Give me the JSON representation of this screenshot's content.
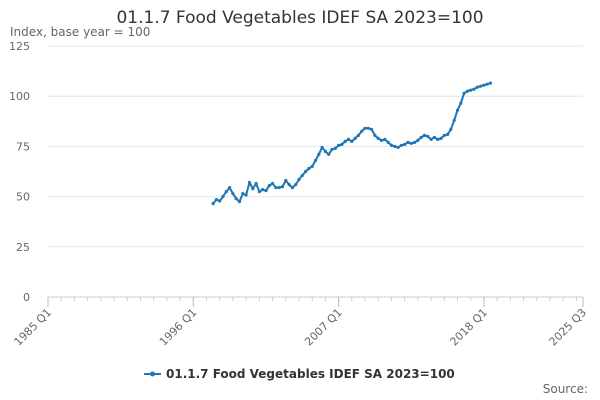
{
  "chart_data": {
    "type": "line",
    "title": "01.1.7 Food Vegetables IDEF SA 2023=100",
    "subtitle": "Index, base year = 100",
    "source_label": "Source:",
    "xlabel": "",
    "ylabel": "",
    "x_ticks": [
      "1985 Q1",
      "1996 Q1",
      "2007 Q1",
      "2018 Q1",
      "2025 Q3"
    ],
    "xlim": [
      "1985 Q1",
      "2025 Q3"
    ],
    "y_ticks": [
      0,
      25,
      50,
      75,
      100,
      125
    ],
    "ylim": [
      0,
      125
    ],
    "grid": "horizontal",
    "legend_position": "bottom-center",
    "series": [
      {
        "name": "01.1.7 Food Vegetables IDEF SA 2023=100",
        "color": "#1f77b4",
        "points": [
          [
            "1997 Q3",
            46.5
          ],
          [
            "1997 Q4",
            48.5
          ],
          [
            "1998 Q1",
            47.8
          ],
          [
            "1998 Q2",
            50.0
          ],
          [
            "1998 Q3",
            52.5
          ],
          [
            "1998 Q4",
            54.5
          ],
          [
            "1999 Q1",
            51.5
          ],
          [
            "1999 Q2",
            49.0
          ],
          [
            "1999 Q3",
            47.5
          ],
          [
            "1999 Q4",
            51.5
          ],
          [
            "2000 Q1",
            50.8
          ],
          [
            "2000 Q2",
            57.0
          ],
          [
            "2000 Q3",
            54.0
          ],
          [
            "2000 Q4",
            56.5
          ],
          [
            "2001 Q1",
            52.5
          ],
          [
            "2001 Q2",
            53.5
          ],
          [
            "2001 Q3",
            53.0
          ],
          [
            "2001 Q4",
            55.5
          ],
          [
            "2002 Q1",
            56.5
          ],
          [
            "2002 Q2",
            54.5
          ],
          [
            "2002 Q3",
            54.5
          ],
          [
            "2002 Q4",
            55.0
          ],
          [
            "2003 Q1",
            58.0
          ],
          [
            "2003 Q2",
            56.0
          ],
          [
            "2003 Q3",
            54.5
          ],
          [
            "2003 Q4",
            56.0
          ],
          [
            "2004 Q1",
            58.5
          ],
          [
            "2004 Q2",
            60.5
          ],
          [
            "2004 Q3",
            62.5
          ],
          [
            "2004 Q4",
            64.0
          ],
          [
            "2005 Q1",
            65.0
          ],
          [
            "2005 Q2",
            68.0
          ],
          [
            "2005 Q3",
            71.0
          ],
          [
            "2005 Q4",
            74.5
          ],
          [
            "2006 Q1",
            72.5
          ],
          [
            "2006 Q2",
            71.0
          ],
          [
            "2006 Q3",
            73.5
          ],
          [
            "2006 Q4",
            74.0
          ],
          [
            "2007 Q1",
            75.5
          ],
          [
            "2007 Q2",
            76.0
          ],
          [
            "2007 Q3",
            77.5
          ],
          [
            "2007 Q4",
            78.5
          ],
          [
            "2008 Q1",
            77.5
          ],
          [
            "2008 Q2",
            79.0
          ],
          [
            "2008 Q3",
            80.5
          ],
          [
            "2008 Q4",
            82.5
          ],
          [
            "2009 Q1",
            84.0
          ],
          [
            "2009 Q2",
            84.0
          ],
          [
            "2009 Q3",
            83.5
          ],
          [
            "2009 Q4",
            80.5
          ],
          [
            "2010 Q1",
            79.0
          ],
          [
            "2010 Q2",
            78.0
          ],
          [
            "2010 Q3",
            78.5
          ],
          [
            "2010 Q4",
            77.0
          ],
          [
            "2011 Q1",
            75.5
          ],
          [
            "2011 Q2",
            75.0
          ],
          [
            "2011 Q3",
            74.5
          ],
          [
            "2011 Q4",
            75.5
          ],
          [
            "2012 Q1",
            76.0
          ],
          [
            "2012 Q2",
            77.0
          ],
          [
            "2012 Q3",
            76.5
          ],
          [
            "2012 Q4",
            77.0
          ],
          [
            "2013 Q1",
            78.0
          ],
          [
            "2013 Q2",
            79.5
          ],
          [
            "2013 Q3",
            80.5
          ],
          [
            "2013 Q4",
            80.0
          ],
          [
            "2014 Q1",
            78.5
          ],
          [
            "2014 Q2",
            79.5
          ],
          [
            "2014 Q3",
            78.5
          ],
          [
            "2014 Q4",
            79.0
          ],
          [
            "2015 Q1",
            80.5
          ],
          [
            "2015 Q2",
            81.0
          ],
          [
            "2015 Q3",
            83.5
          ],
          [
            "2015 Q4",
            88.0
          ],
          [
            "2016 Q1",
            93.0
          ],
          [
            "2016 Q2",
            96.5
          ],
          [
            "2016 Q3",
            101.5
          ],
          [
            "2016 Q4",
            102.5
          ],
          [
            "2017 Q1",
            103.0
          ],
          [
            "2017 Q2",
            103.5
          ],
          [
            "2017 Q3",
            104.5
          ],
          [
            "2017 Q4",
            105.0
          ],
          [
            "2018 Q1",
            105.5
          ],
          [
            "2018 Q2",
            106.0
          ],
          [
            "2018 Q3",
            106.5
          ]
        ]
      }
    ]
  }
}
